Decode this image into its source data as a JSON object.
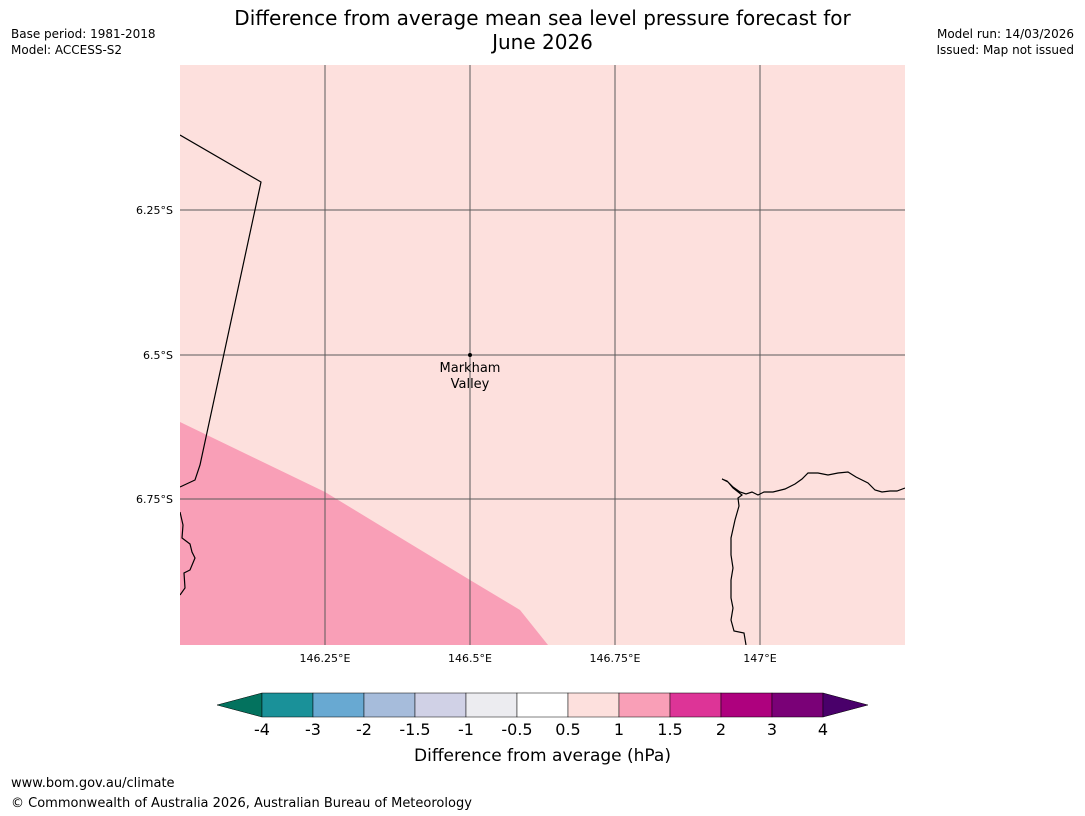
{
  "header": {
    "title_line1": "Difference from average mean sea level pressure forecast for",
    "title_line2": "June 2026",
    "base_period": "Base period: 1981-2018",
    "model": "Model: ACCESS-S2",
    "model_run": "Model run: 14/03/2026",
    "issued": "Issued: Map not issued"
  },
  "map": {
    "lat_labels": [
      "6.25°S",
      "6.5°S",
      "6.75°S"
    ],
    "lon_labels": [
      "146.25°E",
      "146.5°E",
      "146.75°E",
      "147°E"
    ],
    "place": {
      "name_line1": "Markham",
      "name_line2": "Valley",
      "lat": -6.5,
      "lon": 146.5
    },
    "background_category": "0.5 to 1",
    "colors": {
      "fill_05_1": "#fde0dd",
      "fill_1_15": "#f99fb7",
      "coast": "#000000",
      "grid": "#5a5a5a"
    }
  },
  "colorbar": {
    "title": "Difference from average (hPa)",
    "tick_labels": [
      "-4",
      "-3",
      "-2",
      "-1.5",
      "-1",
      "-0.5",
      "0.5",
      "1",
      "1.5",
      "2",
      "3",
      "4"
    ],
    "colors": [
      "#03725e",
      "#1a9199",
      "#68a9d2",
      "#a6bcdb",
      "#d0d1e6",
      "#ececf0",
      "#ffffff",
      "#fde0dd",
      "#f99fb7",
      "#dd3497",
      "#ae017e",
      "#7a0177",
      "#49006a"
    ]
  },
  "footer": {
    "url": "www.bom.gov.au/climate",
    "copyright": "© Commonwealth of Australia 2026, Australian Bureau of Meteorology"
  }
}
